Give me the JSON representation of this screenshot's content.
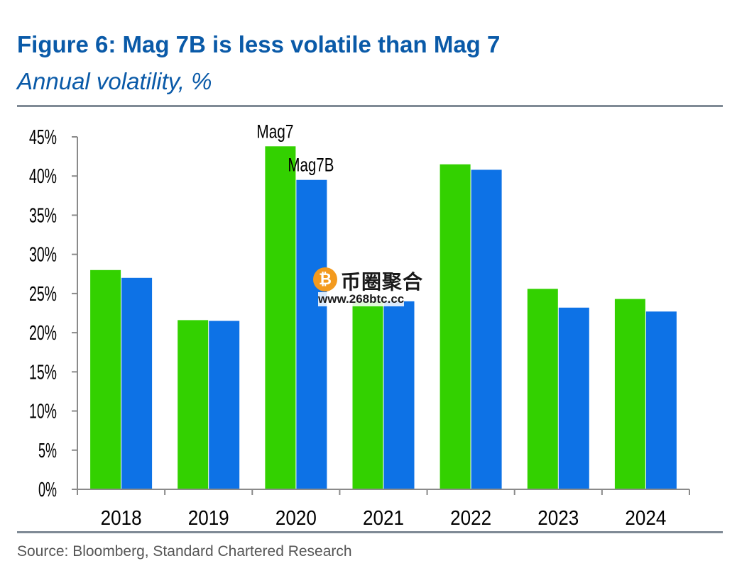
{
  "title": "Figure 6: Mag 7B is less volatile than Mag 7",
  "subtitle": "Annual volatility, %",
  "source": "Source: Bloomberg, Standard Chartered Research",
  "watermark": {
    "icon": "bitcoin-coin-icon",
    "coin_glyph": "₿",
    "brand": "币圈聚合",
    "url": "www.268btc.cc"
  },
  "colors": {
    "title": "#0a5aa8",
    "mag7": "#33d100",
    "mag7b": "#0d72e6",
    "axis": "#8a8a8a",
    "rule": "#7f8a95"
  },
  "chart_data": {
    "type": "bar",
    "title": "Figure 6: Mag 7B is less volatile than Mag 7",
    "subtitle": "Annual volatility, %",
    "xlabel": "",
    "ylabel": "",
    "categories": [
      "2018",
      "2019",
      "2020",
      "2021",
      "2022",
      "2023",
      "2024"
    ],
    "series": [
      {
        "name": "Mag7",
        "values": [
          28.0,
          21.6,
          43.8,
          24.0,
          41.5,
          25.6,
          24.3
        ]
      },
      {
        "name": "Mag7B",
        "values": [
          27.0,
          21.5,
          39.5,
          24.0,
          40.8,
          23.2,
          22.7
        ]
      }
    ],
    "ylim": [
      0,
      45
    ],
    "yticks": [
      0,
      5,
      10,
      15,
      20,
      25,
      30,
      35,
      40,
      45
    ],
    "ytick_labels": [
      "0%",
      "5%",
      "10%",
      "15%",
      "20%",
      "25%",
      "30%",
      "35%",
      "40%",
      "45%"
    ],
    "grid": false,
    "legend": "inline labels above the 2020 bars"
  }
}
